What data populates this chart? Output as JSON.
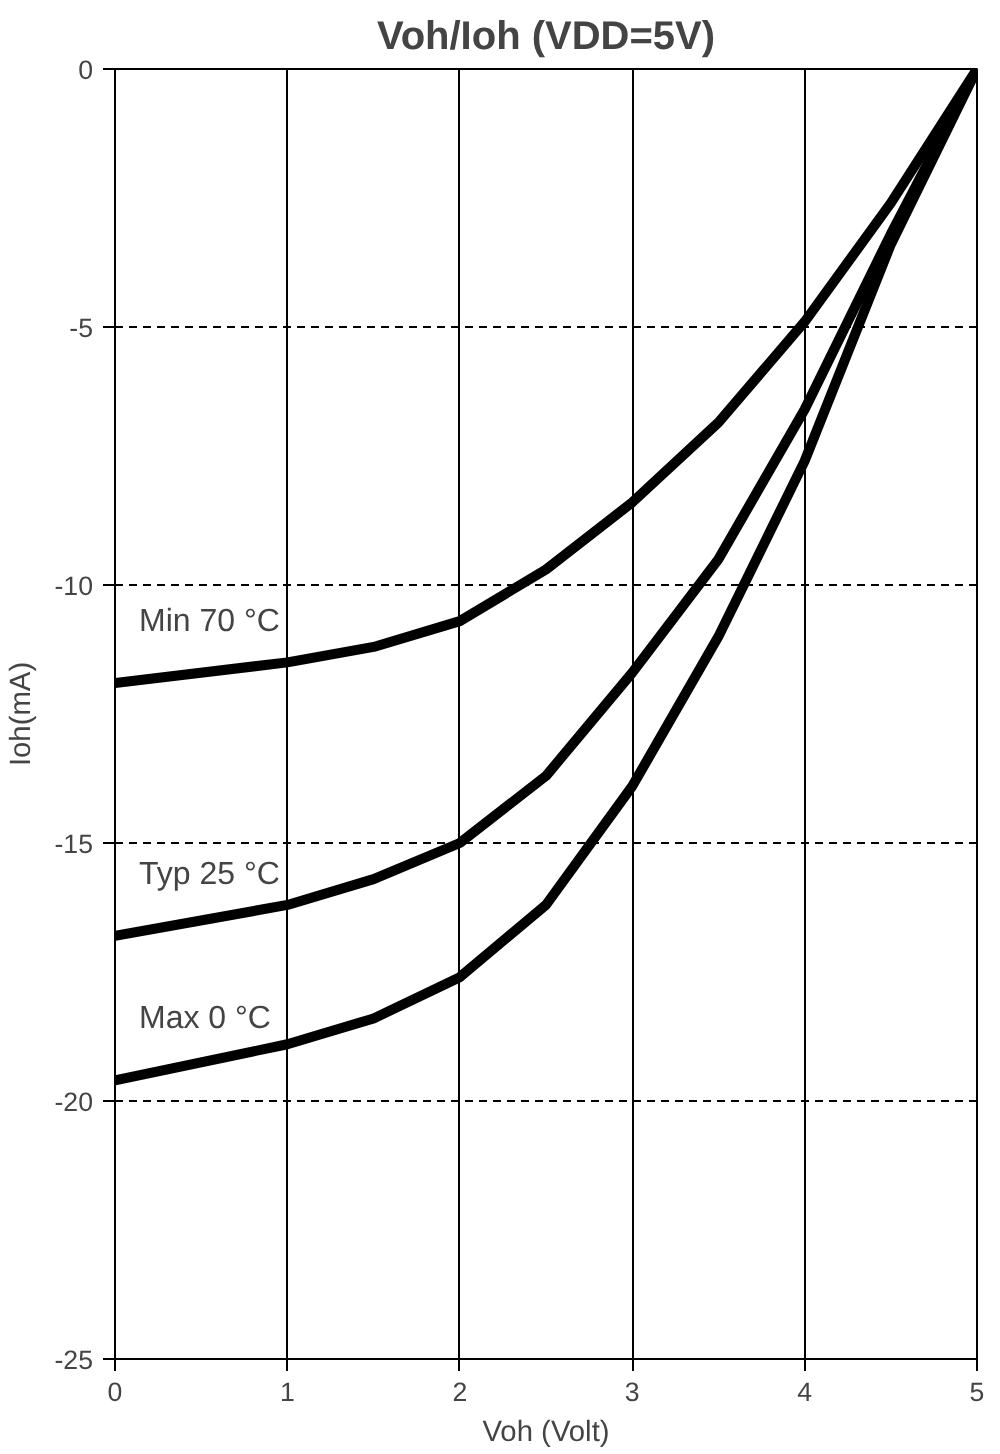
{
  "chart_data": {
    "type": "line",
    "title": "Voh/Ioh (VDD=5V)",
    "xlabel": "Voh (Volt)",
    "ylabel": "Ioh(mA)",
    "x": [
      0,
      1,
      1.5,
      2,
      2.5,
      3,
      3.5,
      4,
      4.5,
      5
    ],
    "series": [
      {
        "name": "Min 70 °C",
        "color": "#000000",
        "values": [
          -11.9,
          -11.5,
          -11.2,
          -10.7,
          -9.7,
          -8.4,
          -6.85,
          -4.9,
          -2.6,
          0
        ]
      },
      {
        "name": "Typ 25 °C",
        "color": "#000000",
        "values": [
          -16.8,
          -16.2,
          -15.7,
          -15.0,
          -13.7,
          -11.7,
          -9.5,
          -6.6,
          -3.2,
          0
        ]
      },
      {
        "name": "Max 0 °C",
        "color": "#000000",
        "values": [
          -19.6,
          -18.9,
          -18.4,
          -17.6,
          -16.2,
          -13.9,
          -11.0,
          -7.6,
          -3.4,
          0
        ]
      }
    ],
    "xlim": [
      0,
      5
    ],
    "xticks": [
      0,
      1,
      2,
      3,
      4,
      5
    ],
    "ylim": [
      -25,
      0
    ],
    "yticks": [
      -25,
      -20,
      -15,
      -10,
      -5,
      0
    ],
    "grid": true,
    "legend": "left",
    "marker": "none",
    "line_style": "solid"
  }
}
